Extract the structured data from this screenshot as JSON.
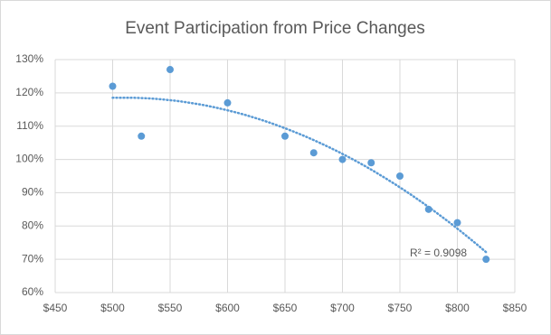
{
  "chart_data": {
    "type": "scatter",
    "title": "Event Participation from Price Changes",
    "x": [
      500,
      525,
      550,
      600,
      650,
      675,
      700,
      725,
      750,
      775,
      800,
      825
    ],
    "values": [
      122,
      107,
      127,
      117,
      107,
      102,
      100,
      99,
      95,
      85,
      81,
      70
    ],
    "color": "#5b9bd5",
    "xlim": [
      450,
      850
    ],
    "xticks": [
      {
        "value": 450,
        "label": "$450"
      },
      {
        "value": 500,
        "label": "$500"
      },
      {
        "value": 550,
        "label": "$550"
      },
      {
        "value": 600,
        "label": "$600"
      },
      {
        "value": 650,
        "label": "$650"
      },
      {
        "value": 700,
        "label": "$700"
      },
      {
        "value": 750,
        "label": "$750"
      },
      {
        "value": 800,
        "label": "$800"
      },
      {
        "value": 850,
        "label": "$850"
      }
    ],
    "ylim": [
      60,
      130
    ],
    "yticks": [
      {
        "value": 60,
        "label": "60%"
      },
      {
        "value": 70,
        "label": "70%"
      },
      {
        "value": 80,
        "label": "80%"
      },
      {
        "value": 90,
        "label": "90%"
      },
      {
        "value": 100,
        "label": "100%"
      },
      {
        "value": 110,
        "label": "110%"
      },
      {
        "value": 120,
        "label": "120%"
      },
      {
        "value": 130,
        "label": "130%"
      }
    ],
    "grid": true,
    "trendline": {
      "order": 2,
      "label": "R² = 0.9098"
    }
  }
}
